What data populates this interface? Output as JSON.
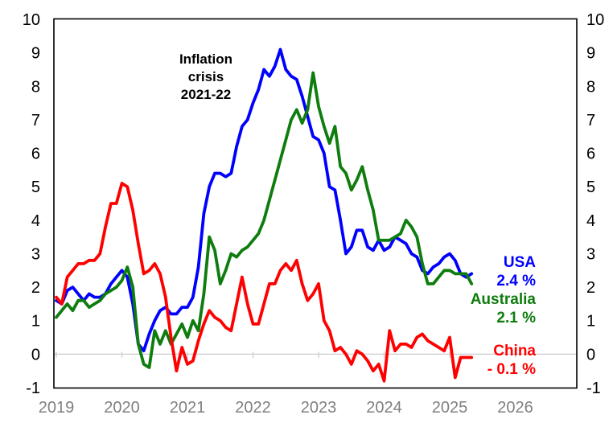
{
  "chart_data": {
    "type": "line",
    "title": "",
    "frequency": "monthly",
    "x_axis": {
      "start_year": 2019,
      "start_month": 1,
      "ticks": [
        "2019",
        "2020",
        "2021",
        "2022",
        "2023",
        "2024",
        "2025",
        "2026"
      ],
      "tick_label_color": "#808080"
    },
    "y_axis": {
      "min": -1,
      "max": 10,
      "ticks": [
        "10",
        "9",
        "8",
        "7",
        "6",
        "5",
        "4",
        "3",
        "2",
        "1",
        "0",
        "-1"
      ],
      "tick_label_color": "#000000",
      "mirrored_right": true
    },
    "grid": {
      "zero_line_only": true,
      "zero_line_color": "#cbcbcb",
      "border_color": "#000000"
    },
    "annotation": {
      "line1": "Inflation",
      "line2": "crisis",
      "line3": "2021-22"
    },
    "series": [
      {
        "name": "USA",
        "color": "#0000ff",
        "end_label": "USA",
        "end_value_label": "2.4 %",
        "values": [
          1.6,
          1.5,
          1.9,
          2.0,
          1.8,
          1.6,
          1.8,
          1.7,
          1.7,
          1.8,
          2.1,
          2.3,
          2.5,
          2.3,
          1.5,
          0.3,
          0.1,
          0.6,
          1.0,
          1.3,
          1.4,
          1.2,
          1.2,
          1.4,
          1.4,
          1.7,
          2.6,
          4.2,
          5.0,
          5.4,
          5.4,
          5.3,
          5.4,
          6.2,
          6.8,
          7.0,
          7.5,
          7.9,
          8.5,
          8.3,
          8.6,
          9.1,
          8.5,
          8.3,
          8.2,
          7.7,
          7.1,
          6.5,
          6.4,
          6.0,
          5.0,
          4.9,
          4.0,
          3.0,
          3.2,
          3.7,
          3.7,
          3.2,
          3.1,
          3.4,
          3.1,
          3.2,
          3.5,
          3.4,
          3.3,
          3.0,
          2.9,
          2.5,
          2.4,
          2.6,
          2.7,
          2.9,
          3.0,
          2.8,
          2.4,
          2.3,
          2.4
        ]
      },
      {
        "name": "Australia",
        "color": "#0e7d0e",
        "end_label": "Australia",
        "end_value_label": "2.1 %",
        "values": [
          1.1,
          1.3,
          1.5,
          1.3,
          1.6,
          1.6,
          1.4,
          1.5,
          1.6,
          1.8,
          1.9,
          2.0,
          2.2,
          2.6,
          2.0,
          0.3,
          -0.3,
          -0.4,
          0.7,
          0.3,
          0.7,
          0.3,
          0.6,
          0.9,
          0.5,
          1.0,
          0.7,
          1.8,
          3.5,
          3.1,
          2.1,
          2.5,
          3.0,
          2.9,
          3.1,
          3.2,
          3.4,
          3.6,
          4.0,
          4.6,
          5.2,
          5.8,
          6.4,
          7.0,
          7.3,
          6.9,
          7.3,
          8.4,
          7.4,
          6.8,
          6.3,
          6.8,
          5.6,
          5.4,
          4.9,
          5.2,
          5.6,
          4.9,
          4.3,
          3.4,
          3.4,
          3.4,
          3.5,
          3.6,
          4.0,
          3.8,
          3.5,
          2.7,
          2.1,
          2.1,
          2.3,
          2.5,
          2.5,
          2.4,
          2.4,
          2.4,
          2.1
        ]
      },
      {
        "name": "China",
        "color": "#ff0000",
        "end_label": "China",
        "end_value_label": "- 0.1 %",
        "values": [
          1.7,
          1.5,
          2.3,
          2.5,
          2.7,
          2.7,
          2.8,
          2.8,
          3.0,
          3.8,
          4.5,
          4.5,
          5.1,
          5.0,
          4.3,
          3.3,
          2.4,
          2.5,
          2.7,
          2.4,
          1.7,
          0.5,
          -0.5,
          0.2,
          -0.3,
          -0.2,
          0.4,
          0.9,
          1.3,
          1.1,
          1.0,
          0.8,
          0.7,
          1.5,
          2.3,
          1.5,
          0.9,
          0.9,
          1.5,
          2.1,
          2.1,
          2.5,
          2.7,
          2.5,
          2.8,
          2.1,
          1.6,
          1.8,
          2.1,
          1.0,
          0.7,
          0.1,
          0.2,
          0.0,
          -0.3,
          0.1,
          0.0,
          -0.2,
          -0.5,
          -0.3,
          -0.8,
          0.7,
          0.1,
          0.3,
          0.3,
          0.2,
          0.5,
          0.6,
          0.4,
          0.3,
          0.2,
          0.1,
          0.5,
          -0.7,
          -0.1,
          -0.1,
          -0.1
        ]
      }
    ]
  }
}
